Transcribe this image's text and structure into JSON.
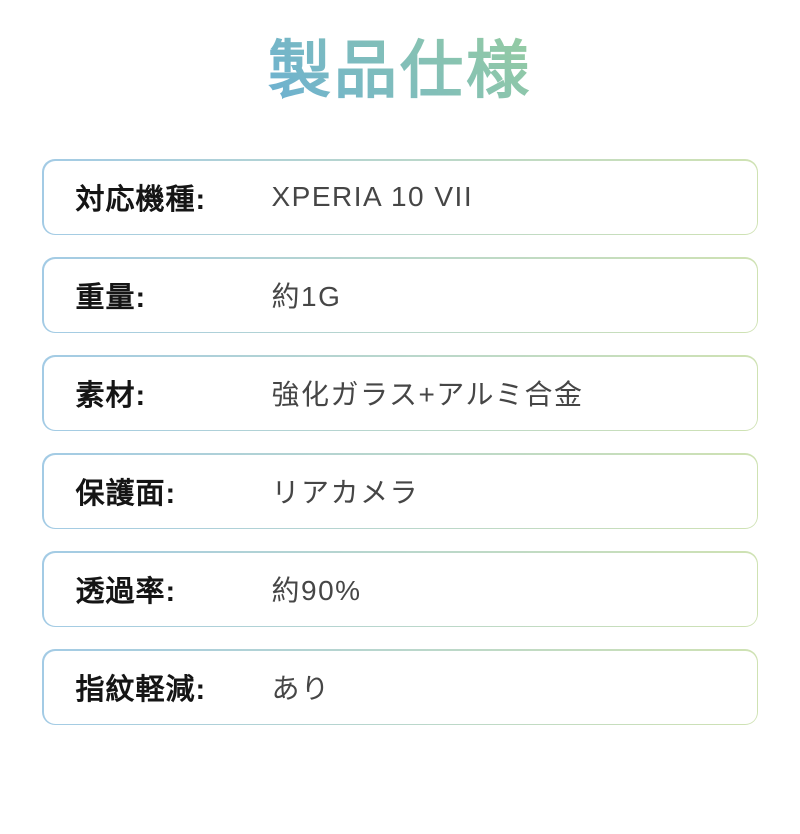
{
  "page": {
    "title": "製品仕様"
  },
  "colors": {
    "background": "#ffffff",
    "title_gradient_start": "#5ba5e6",
    "title_gradient_end": "#a6d78e",
    "box_border_gradient_start": "#a3cbe5",
    "box_border_gradient_end": "#cfe2b3",
    "label_color": "#151515",
    "value_color": "#464646"
  },
  "specs": {
    "rows": [
      {
        "label": "対応機種:",
        "value": "XPERIA 10 VII"
      },
      {
        "label": "重量:",
        "value": "約1G"
      },
      {
        "label": "素材:",
        "value": "強化ガラス+アルミ合金"
      },
      {
        "label": "保護面:",
        "value": "リアカメラ"
      },
      {
        "label": "透過率:",
        "value": "約90%"
      },
      {
        "label": "指紋軽減:",
        "value": "あり"
      }
    ]
  }
}
